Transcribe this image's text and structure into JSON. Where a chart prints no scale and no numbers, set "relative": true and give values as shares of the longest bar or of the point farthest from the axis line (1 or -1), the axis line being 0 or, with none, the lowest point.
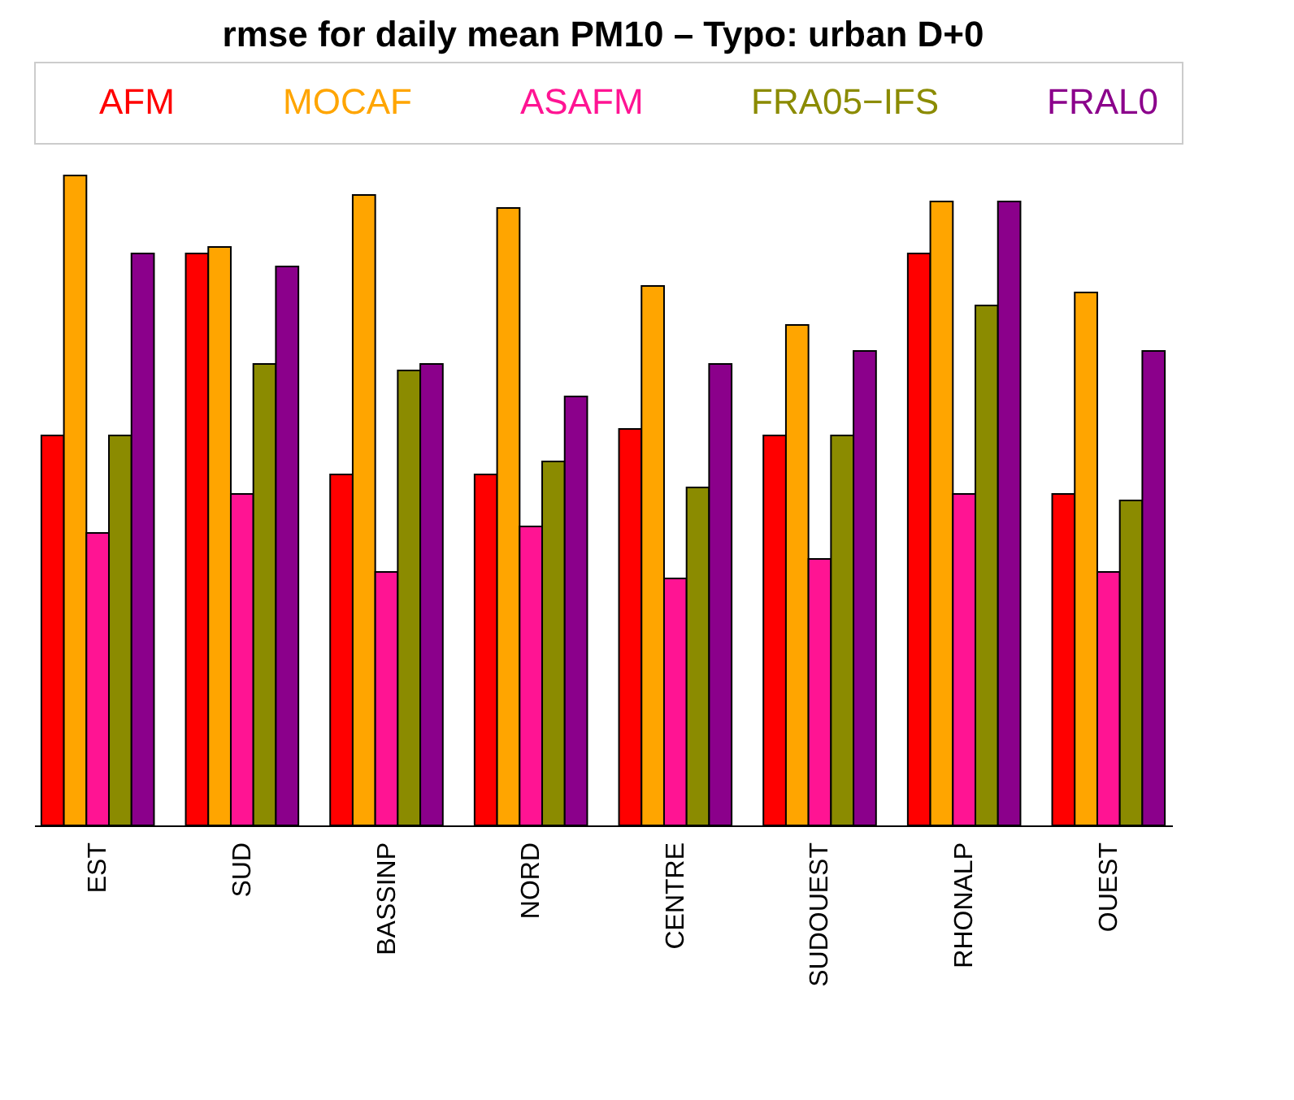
{
  "chart_data": {
    "type": "bar",
    "title": "rmse for daily mean PM10 – Typo: urban D+0",
    "relative": true,
    "legend": "top",
    "categories": [
      "EST",
      "SUD",
      "BASSINP",
      "NORD",
      "CENTRE",
      "SUDOUEST",
      "RHONALP",
      "OUEST"
    ],
    "series": [
      {
        "name": "AFM",
        "color": "#ff0000",
        "values": [
          0.6,
          0.88,
          0.54,
          0.54,
          0.61,
          0.6,
          0.88,
          0.51
        ]
      },
      {
        "name": "MOCAF",
        "color": "#ffa500",
        "values": [
          1,
          0.89,
          0.97,
          0.95,
          0.83,
          0.77,
          0.96,
          0.82
        ]
      },
      {
        "name": "ASAFM",
        "color": "#ff1493",
        "values": [
          0.45,
          0.51,
          0.39,
          0.46,
          0.38,
          0.41,
          0.51,
          0.39
        ]
      },
      {
        "name": "FRA05−IFS",
        "color": "#8b8b00",
        "values": [
          0.6,
          0.71,
          0.7,
          0.56,
          0.52,
          0.6,
          0.8,
          0.5
        ]
      },
      {
        "name": "FRAL0",
        "color": "#8b008b",
        "values": [
          0.88,
          0.86,
          0.71,
          0.66,
          0.71,
          0.73,
          0.96,
          0.73
        ]
      }
    ]
  }
}
